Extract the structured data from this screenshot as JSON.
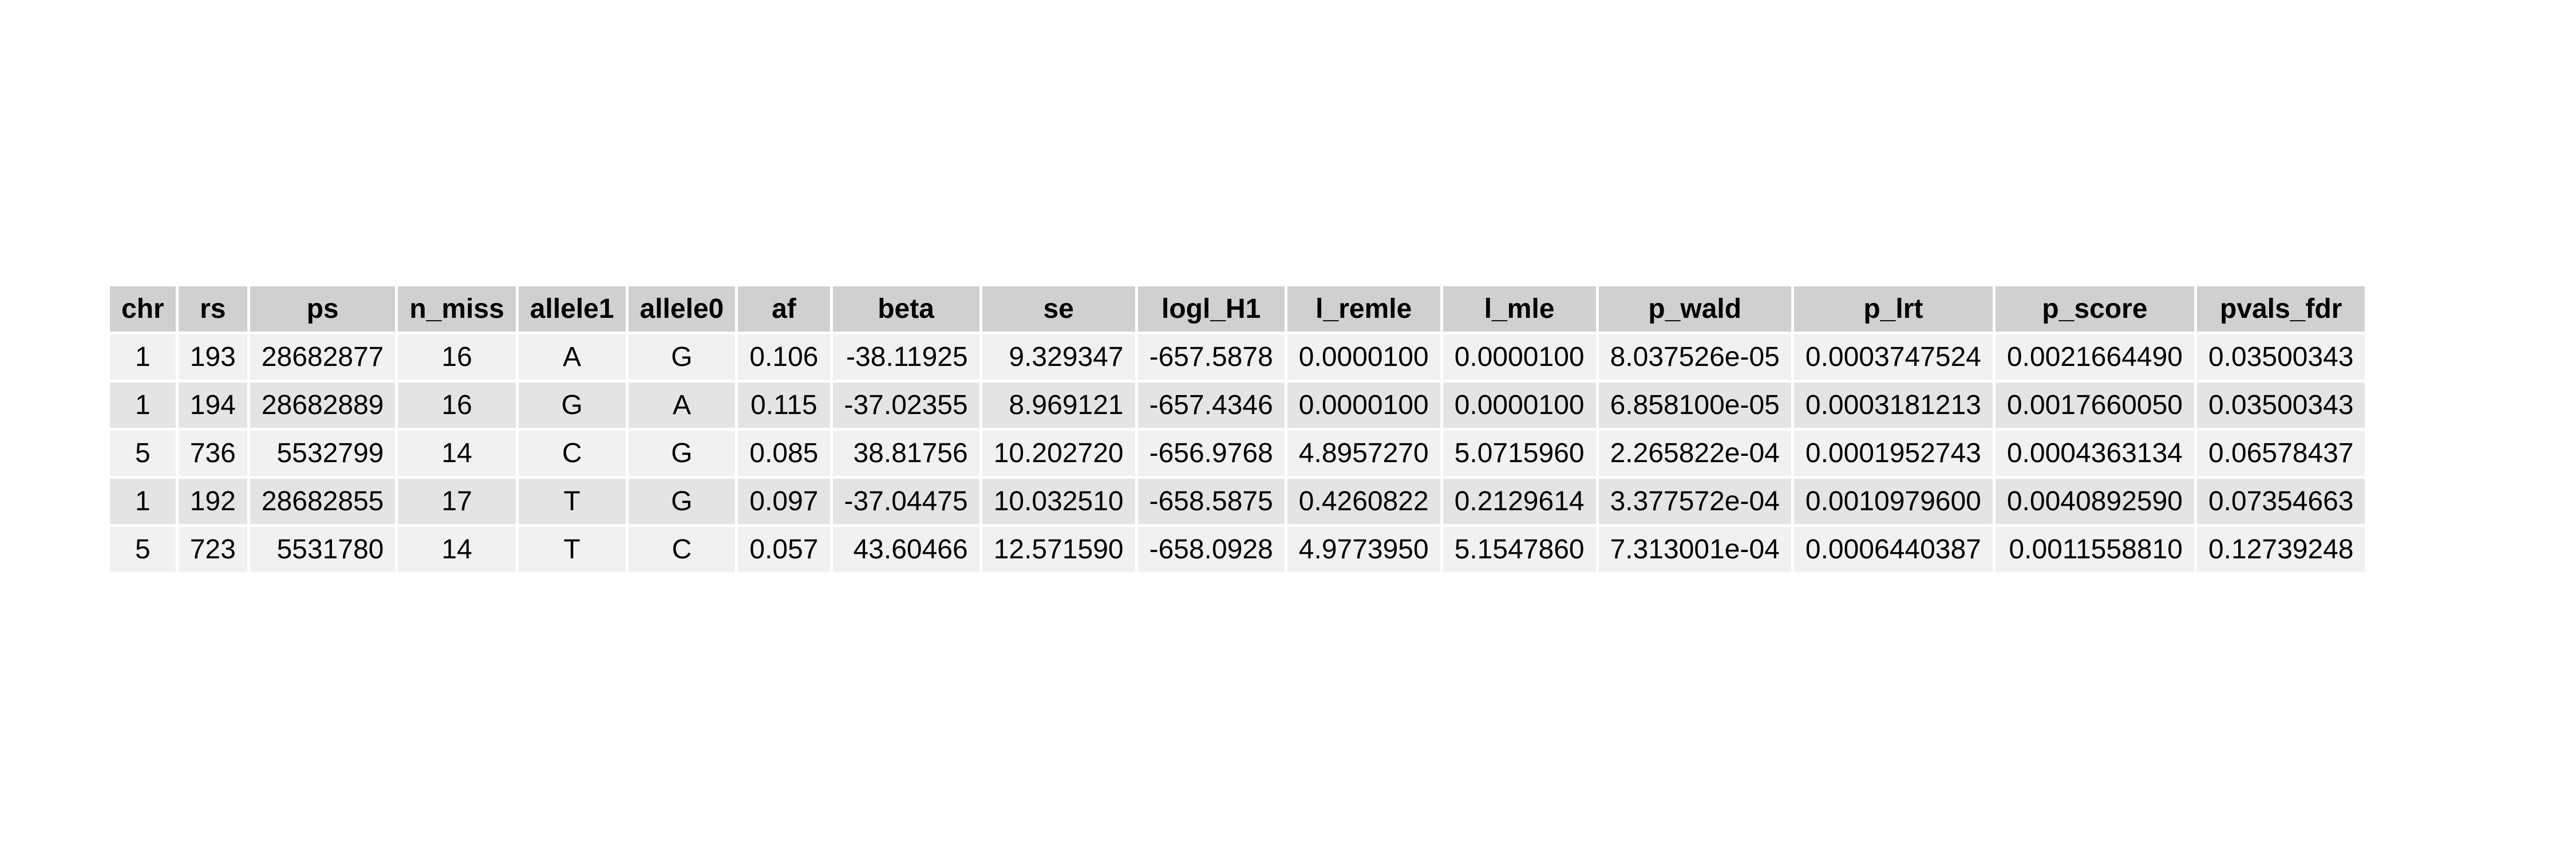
{
  "chart_data": {
    "type": "table",
    "columns": [
      "chr",
      "rs",
      "ps",
      "n_miss",
      "allele1",
      "allele0",
      "af",
      "beta",
      "se",
      "logl_H1",
      "l_remle",
      "l_mle",
      "p_wald",
      "p_lrt",
      "p_score",
      "pvals_fdr"
    ],
    "rows": [
      [
        "1",
        "193",
        "28682877",
        "16",
        "A",
        "G",
        "0.106",
        "-38.11925",
        "9.329347",
        "-657.5878",
        "0.0000100",
        "0.0000100",
        "8.037526e-05",
        "0.0003747524",
        "0.0021664490",
        "0.03500343"
      ],
      [
        "1",
        "194",
        "28682889",
        "16",
        "G",
        "A",
        "0.115",
        "-37.02355",
        "8.969121",
        "-657.4346",
        "0.0000100",
        "0.0000100",
        "6.858100e-05",
        "0.0003181213",
        "0.0017660050",
        "0.03500343"
      ],
      [
        "5",
        "736",
        "5532799",
        "14",
        "C",
        "G",
        "0.085",
        "38.81756",
        "10.202720",
        "-656.9768",
        "4.8957270",
        "5.0715960",
        "2.265822e-04",
        "0.0001952743",
        "0.0004363134",
        "0.06578437"
      ],
      [
        "1",
        "192",
        "28682855",
        "17",
        "T",
        "G",
        "0.097",
        "-37.04475",
        "10.032510",
        "-658.5875",
        "0.4260822",
        "0.2129614",
        "3.377572e-04",
        "0.0010979600",
        "0.0040892590",
        "0.07354663"
      ],
      [
        "5",
        "723",
        "5531780",
        "14",
        "T",
        "C",
        "0.057",
        "43.60466",
        "12.571590",
        "-658.0928",
        "4.9773950",
        "5.1547860",
        "7.313001e-04",
        "0.0006440387",
        "0.0011558810",
        "0.12739248"
      ]
    ]
  }
}
